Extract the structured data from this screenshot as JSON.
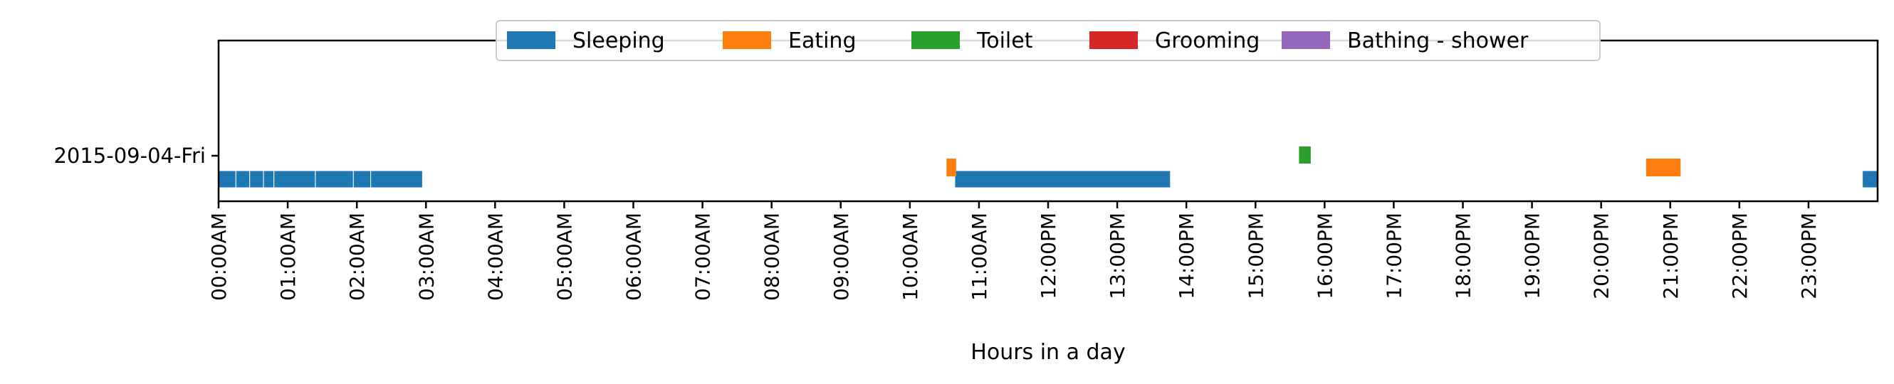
{
  "chart_data": {
    "type": "timeline",
    "title": "",
    "xlabel": "Hours in a day",
    "ylabel": "",
    "xlim_hours": [
      0,
      24
    ],
    "x_tick_labels": [
      "00:00AM",
      "01:00AM",
      "02:00AM",
      "03:00AM",
      "04:00AM",
      "05:00AM",
      "06:00AM",
      "07:00AM",
      "08:00AM",
      "09:00AM",
      "10:00AM",
      "11:00AM",
      "12:00PM",
      "13:00PM",
      "14:00PM",
      "15:00PM",
      "16:00PM",
      "17:00PM",
      "18:00PM",
      "19:00PM",
      "20:00PM",
      "21:00PM",
      "22:00PM",
      "23:00PM"
    ],
    "y_categories": [
      "2015-09-04-Fri"
    ],
    "legend_position": "top-center",
    "grid": false,
    "series": [
      {
        "name": "Sleeping",
        "color": "#1f77b4",
        "lane": 0,
        "segments": [
          [
            0.0,
            0.25
          ],
          [
            0.25,
            0.45
          ],
          [
            0.45,
            0.65
          ],
          [
            0.65,
            0.8
          ],
          [
            0.8,
            1.4
          ],
          [
            1.4,
            1.95
          ],
          [
            1.95,
            2.2
          ],
          [
            2.2,
            2.95
          ],
          [
            10.65,
            13.77
          ],
          [
            23.78,
            24.0
          ]
        ]
      },
      {
        "name": "Eating",
        "color": "#ff7f0e",
        "lane": 1,
        "segments": [
          [
            10.53,
            10.67
          ],
          [
            20.65,
            21.15
          ]
        ]
      },
      {
        "name": "Toilet",
        "color": "#2ca02c",
        "lane": 2,
        "segments": [
          [
            15.63,
            15.8
          ]
        ]
      },
      {
        "name": "Grooming",
        "color": "#d62728",
        "lane": 2,
        "segments": []
      },
      {
        "name": "Bathing - shower",
        "color": "#9467bd",
        "lane": 2,
        "segments": []
      }
    ]
  }
}
